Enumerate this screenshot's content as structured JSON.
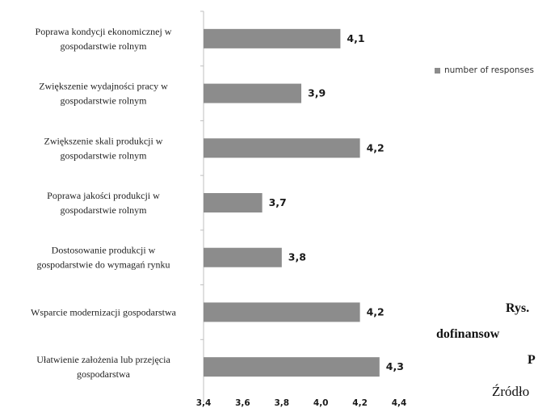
{
  "chart_data": {
    "type": "bar",
    "orientation": "horizontal",
    "categories": [
      [
        "Poprawa kondycji ekonomicznej w",
        "gospodarstwie rolnym"
      ],
      [
        "Zwiększenie wydajności pracy w",
        "gospodarstwie rolnym"
      ],
      [
        "Zwiększenie skali produkcji w",
        "gospodarstwie rolnym"
      ],
      [
        "Poprawa jakości produkcji w",
        "gospodarstwie rolnym"
      ],
      [
        "Dostosowanie produkcji w",
        "gospodarstwie do wymagań rynku"
      ],
      [
        "Wsparcie modernizacji gospodarstwa"
      ],
      [
        "Ułatwienie założenia lub przejęcia",
        "gospodarstwa"
      ]
    ],
    "series": [
      {
        "name": "number of responses",
        "values": [
          4.1,
          3.9,
          4.2,
          3.7,
          3.8,
          4.2,
          4.3
        ]
      }
    ],
    "data_labels": [
      "4,1",
      "3,9",
      "4,2",
      "3,7",
      "3,8",
      "4,2",
      "4,3"
    ],
    "xlim": [
      3.4,
      4.4
    ],
    "xticks": [
      3.4,
      3.6,
      3.8,
      4.0,
      4.2,
      4.4
    ],
    "xtick_labels": [
      "3,4",
      "3,6",
      "3,8",
      "4,0",
      "4,2",
      "4,4"
    ],
    "bar_color": "#8c8c8c",
    "grid": false,
    "legend_position": "right"
  },
  "legend": {
    "label": "number of responses"
  },
  "cutoff_text": {
    "line1": "Rys.",
    "line2": "dofinansow",
    "line3": "P",
    "line4": "Źródło"
  }
}
